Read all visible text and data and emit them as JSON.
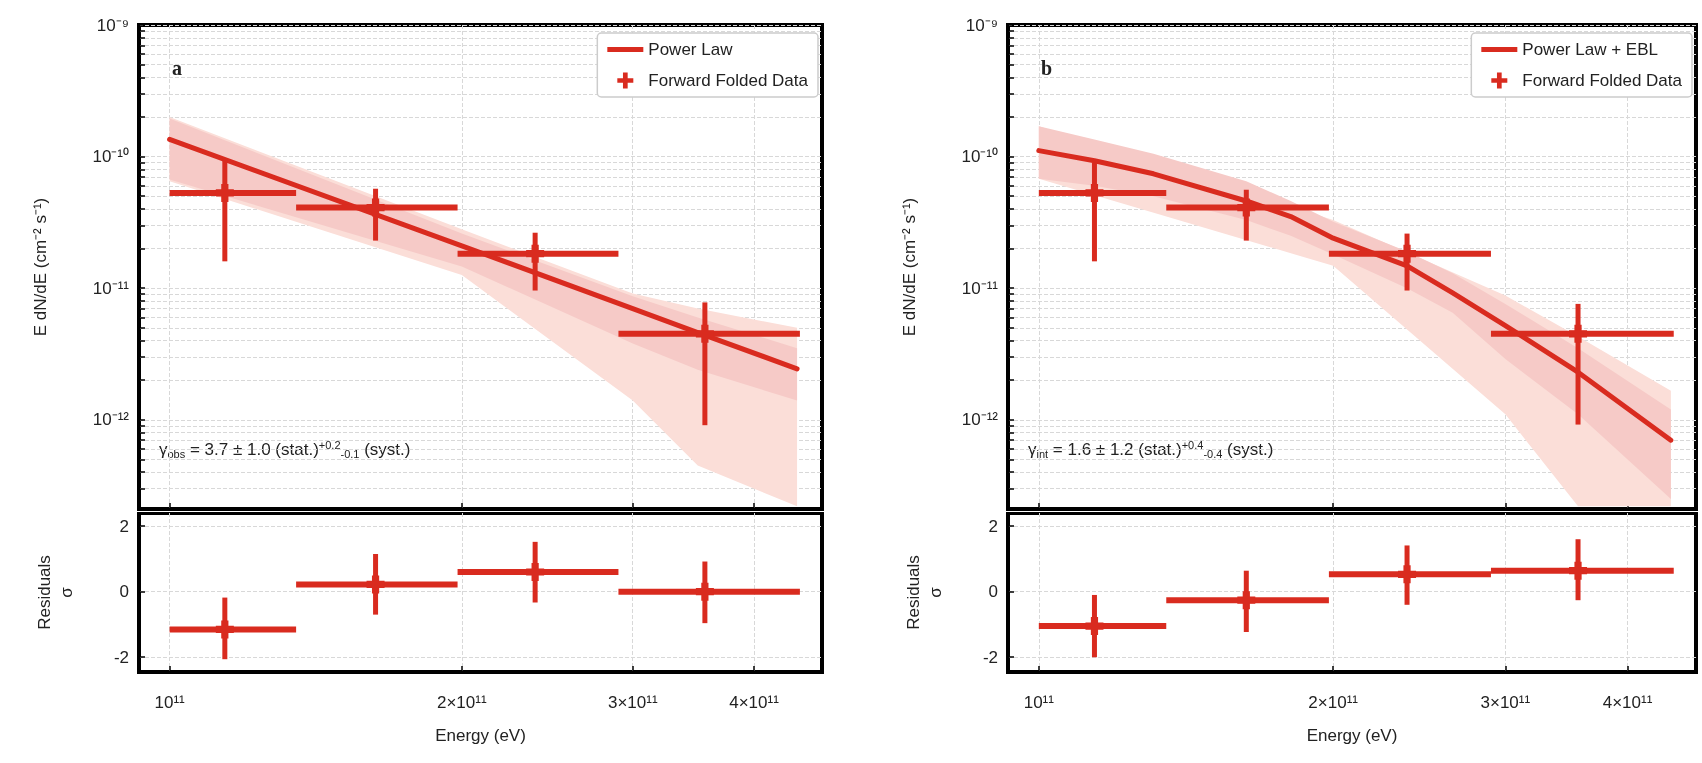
{
  "chart_data": [
    {
      "type": "scatter",
      "title": "a",
      "ylabel": "E dN/dE (cm⁻² s⁻¹)",
      "annotations": [
        "γ$_{obs}$ = 3.7 ± 1.0 (stat.)$^{+0.2}$$_{-0.1}$ (syst.)"
      ],
      "log": "xy",
      "grid": true,
      "legend": "top right",
      "marker": "none",
      "tick_labels": "y",
      "xlim": [
        93000000000.0,
        470000000000.0
      ],
      "xticks": [
        {
          "value": 100000000000.0,
          "label": null
        },
        {
          "value": 200000000000.0,
          "label": null
        },
        {
          "value": 300000000000.0,
          "label": null
        },
        {
          "value": 400000000000.0,
          "label": null
        }
      ],
      "ylim": [
        2.1e-13,
        1e-09
      ],
      "yticks": [
        {
          "value": 3e-13,
          "label": null
        },
        {
          "value": 4e-13,
          "label": null
        },
        {
          "value": 5e-13,
          "label": null
        },
        {
          "value": 6e-13,
          "label": null
        },
        {
          "value": 7e-13,
          "label": null
        },
        {
          "value": 8e-13,
          "label": null
        },
        {
          "value": 9e-13,
          "label": null
        },
        {
          "value": 1e-12,
          "label": "10⁻¹²"
        },
        {
          "value": 2e-12,
          "label": null
        },
        {
          "value": 3e-12,
          "label": null
        },
        {
          "value": 4e-12,
          "label": null
        },
        {
          "value": 5e-12,
          "label": null
        },
        {
          "value": 6e-12,
          "label": null
        },
        {
          "value": 7e-12,
          "label": null
        },
        {
          "value": 8e-12,
          "label": null
        },
        {
          "value": 9e-12,
          "label": null
        },
        {
          "value": 1e-11,
          "label": "10⁻¹¹"
        },
        {
          "value": 2e-11,
          "label": null
        },
        {
          "value": 3e-11,
          "label": null
        },
        {
          "value": 4e-11,
          "label": null
        },
        {
          "value": 5e-11,
          "label": null
        },
        {
          "value": 6e-11,
          "label": null
        },
        {
          "value": 7e-11,
          "label": null
        },
        {
          "value": 8e-11,
          "label": null
        },
        {
          "value": 9e-11,
          "label": null
        },
        {
          "value": 1e-10,
          "label": "10⁻¹⁰"
        },
        {
          "value": 2e-10,
          "label": null
        },
        {
          "value": 3e-10,
          "label": null
        },
        {
          "value": 4e-10,
          "label": null
        },
        {
          "value": 5e-10,
          "label": null
        },
        {
          "value": 6e-10,
          "label": null
        },
        {
          "value": 7e-10,
          "label": null
        },
        {
          "value": 8e-10,
          "label": null
        },
        {
          "value": 9e-10,
          "label": null
        },
        {
          "value": 1e-09,
          "label": "10⁻⁹"
        }
      ],
      "series": [
        {
          "type": "line",
          "color": "#f07a64",
          "x": [
            100000000000.0,
            200000000000.0,
            300000000000.0,
            350000000000.0,
            443000000000.0
          ],
          "values": [
            null,
            null,
            null,
            null,
            null
          ],
          "lower": [
            6.5e-11,
            1.26e-11,
            1.4e-12,
            4.5e-13,
            2.2e-13
          ],
          "upper": [
            2e-10,
            2.8e-11,
            9.1e-12,
            7e-12,
            5e-12
          ]
        },
        {
          "type": "line",
          "name": "Power Law",
          "color": "#d92b1f",
          "x": [
            100000000000.0,
            200000000000.0,
            300000000000.0,
            350000000000.0,
            443000000000.0
          ],
          "values": [
            1.35e-10,
            2.1e-11,
            7e-12,
            4.6e-12,
            2.44e-12
          ],
          "lower": [
            6.7e-11,
            1.46e-11,
            3.8e-12,
            2.4e-12,
            1.4e-12
          ],
          "upper": [
            1.95e-10,
            2.6e-11,
            8.7e-12,
            6e-12,
            3.5e-12
          ]
        },
        {
          "name": "Forward Folded Data",
          "color": "#d92b1f",
          "marker": "cross",
          "x": [
            114000000000.0,
            163000000000.0,
            238000000000.0,
            356000000000.0
          ],
          "values": [
            5.3e-11,
            4.1e-11,
            1.83e-11,
            4.5e-12
          ],
          "xerrors": [
            [
              100000000000.0,
              135000000000.0
            ],
            [
              135000000000.0,
              198000000000.0
            ],
            [
              198000000000.0,
              290000000000.0
            ],
            [
              290000000000.0,
              446000000000.0
            ]
          ],
          "errors": [
            [
              1.6e-11,
              9.7e-11
            ],
            [
              2.3e-11,
              5.7e-11
            ],
            [
              9.6e-12,
              2.64e-11
            ],
            [
              9.1e-13,
              7.8e-12
            ]
          ]
        }
      ]
    },
    {
      "type": "scatter",
      "title": "b",
      "ylabel": "E dN/dE (cm⁻² s⁻¹)",
      "annotations": [
        "γ$_{int}$ = 1.6 ± 1.2 (stat.)$^{+0.4}$$_{-0.4}$ (syst.)"
      ],
      "log": "xy",
      "grid": true,
      "legend": "top right",
      "marker": "none",
      "tick_labels": "y",
      "xlim": [
        93000000000.0,
        470000000000.0
      ],
      "xticks": [
        {
          "value": 100000000000.0,
          "label": null
        },
        {
          "value": 200000000000.0,
          "label": null
        },
        {
          "value": 300000000000.0,
          "label": null
        },
        {
          "value": 400000000000.0,
          "label": null
        }
      ],
      "ylim": [
        2.1e-13,
        1e-09
      ],
      "yticks": [
        {
          "value": 3e-13,
          "label": null
        },
        {
          "value": 4e-13,
          "label": null
        },
        {
          "value": 5e-13,
          "label": null
        },
        {
          "value": 6e-13,
          "label": null
        },
        {
          "value": 7e-13,
          "label": null
        },
        {
          "value": 8e-13,
          "label": null
        },
        {
          "value": 9e-13,
          "label": null
        },
        {
          "value": 1e-12,
          "label": "10⁻¹²"
        },
        {
          "value": 2e-12,
          "label": null
        },
        {
          "value": 3e-12,
          "label": null
        },
        {
          "value": 4e-12,
          "label": null
        },
        {
          "value": 5e-12,
          "label": null
        },
        {
          "value": 6e-12,
          "label": null
        },
        {
          "value": 7e-12,
          "label": null
        },
        {
          "value": 8e-12,
          "label": null
        },
        {
          "value": 9e-12,
          "label": null
        },
        {
          "value": 1e-11,
          "label": "10⁻¹¹"
        },
        {
          "value": 2e-11,
          "label": null
        },
        {
          "value": 3e-11,
          "label": null
        },
        {
          "value": 4e-11,
          "label": null
        },
        {
          "value": 5e-11,
          "label": null
        },
        {
          "value": 6e-11,
          "label": null
        },
        {
          "value": 7e-11,
          "label": null
        },
        {
          "value": 8e-11,
          "label": null
        },
        {
          "value": 9e-11,
          "label": null
        },
        {
          "value": 1e-10,
          "label": "10⁻¹⁰"
        },
        {
          "value": 2e-10,
          "label": null
        },
        {
          "value": 3e-10,
          "label": null
        },
        {
          "value": 4e-10,
          "label": null
        },
        {
          "value": 5e-10,
          "label": null
        },
        {
          "value": 6e-10,
          "label": null
        },
        {
          "value": 7e-10,
          "label": null
        },
        {
          "value": 8e-10,
          "label": null
        },
        {
          "value": 9e-10,
          "label": null
        },
        {
          "value": 1e-09,
          "label": "10⁻⁹"
        }
      ],
      "series": [
        {
          "type": "line",
          "color": "#f07a64",
          "x": [
            100000000000.0,
            200000000000.0,
            300000000000.0,
            356000000000.0,
            443000000000.0
          ],
          "values": [
            null,
            null,
            null,
            null,
            null
          ],
          "lower": [
            6.8e-11,
            1.48e-11,
            1.1e-12,
            2.2e-13,
            2.2e-13
          ],
          "upper": [
            1.7e-10,
            3.3e-11,
            8.8e-12,
            4.3e-12,
            1.66e-12
          ]
        },
        {
          "type": "line",
          "name": "Power Law + EBL",
          "color": "#d92b1f",
          "x": [
            100000000000.0,
            114000000000.0,
            131000000000.0,
            163000000000.0,
            181000000000.0,
            200000000000.0,
            238000000000.0,
            265000000000.0,
            300000000000.0,
            356000000000.0,
            443000000000.0
          ],
          "values": [
            1.11e-10,
            9.3e-11,
            7.4e-11,
            4.6e-11,
            3.5e-11,
            2.4e-11,
            1.48e-11,
            9.2e-12,
            5.2e-12,
            2.3e-12,
            7e-13
          ],
          "lower": [
            6.8e-11,
            6e-11,
            5e-11,
            3.3e-11,
            2.5e-11,
            1.8e-11,
            1e-11,
            6.5e-12,
            2.9e-12,
            1.1e-12,
            2.5e-13
          ],
          "upper": [
            1.7e-10,
            1.35e-10,
            1.05e-10,
            6.5e-11,
            4.6e-11,
            3.2e-11,
            1.9e-11,
            1.3e-11,
            7.6e-12,
            3.5e-12,
            1.2e-12
          ]
        },
        {
          "name": "Forward Folded Data",
          "color": "#d92b1f",
          "marker": "cross",
          "x": [
            114000000000.0,
            163000000000.0,
            238000000000.0,
            356000000000.0
          ],
          "values": [
            5.3e-11,
            4.1e-11,
            1.83e-11,
            4.5e-12
          ],
          "xerrors": [
            [
              100000000000.0,
              135000000000.0
            ],
            [
              135000000000.0,
              198000000000.0
            ],
            [
              198000000000.0,
              290000000000.0
            ],
            [
              290000000000.0,
              446000000000.0
            ]
          ],
          "errors": [
            [
              1.6e-11,
              9e-11
            ],
            [
              2.3e-11,
              5.6e-11
            ],
            [
              9.6e-12,
              2.6e-11
            ],
            [
              9.2e-13,
              7.6e-12
            ]
          ]
        }
      ]
    },
    {
      "type": "scatter",
      "xlabel": "Energy (eV)",
      "ylabel": "Residuals\nσ",
      "log": "x",
      "grid": true,
      "marker": "cross",
      "xlim": [
        93000000000.0,
        470000000000.0
      ],
      "xticks": [
        {
          "value": 100000000000.0,
          "label": "10¹¹"
        },
        {
          "value": 200000000000.0,
          "label": "2×10¹¹"
        },
        {
          "value": 300000000000.0,
          "label": "3×10¹¹"
        },
        {
          "value": 400000000000.0,
          "label": "4×10¹¹"
        }
      ],
      "ylim": [
        -2.45,
        2.4
      ],
      "yticks": [
        -2,
        0,
        2
      ],
      "series": [
        {
          "color": "#d92b1f",
          "x": [
            114000000000.0,
            163000000000.0,
            238000000000.0,
            356000000000.0
          ],
          "values": [
            -1.15,
            0.22,
            0.6,
            0.0
          ],
          "xerrors": [
            [
              100000000000.0,
              135000000000.0
            ],
            [
              135000000000.0,
              198000000000.0
            ],
            [
              198000000000.0,
              290000000000.0
            ],
            [
              290000000000.0,
              446000000000.0
            ]
          ],
          "errors": [
            [
              -2.06,
              -0.18
            ],
            [
              -0.7,
              1.15
            ],
            [
              -0.33,
              1.52
            ],
            [
              -0.96,
              0.92
            ]
          ]
        }
      ]
    },
    {
      "type": "scatter",
      "xlabel": "Energy (eV)",
      "ylabel": "Residuals\nσ",
      "log": "x",
      "grid": true,
      "marker": "cross",
      "xlim": [
        93000000000.0,
        470000000000.0
      ],
      "xticks": [
        {
          "value": 100000000000.0,
          "label": "10¹¹"
        },
        {
          "value": 200000000000.0,
          "label": "2×10¹¹"
        },
        {
          "value": 300000000000.0,
          "label": "3×10¹¹"
        },
        {
          "value": 400000000000.0,
          "label": "4×10¹¹"
        }
      ],
      "ylim": [
        -2.45,
        2.4
      ],
      "yticks": [
        -2,
        0,
        2
      ],
      "series": [
        {
          "color": "#d92b1f",
          "x": [
            114000000000.0,
            163000000000.0,
            238000000000.0,
            356000000000.0
          ],
          "values": [
            -1.05,
            -0.26,
            0.53,
            0.64
          ],
          "xerrors": [
            [
              100000000000.0,
              135000000000.0
            ],
            [
              135000000000.0,
              198000000000.0
            ],
            [
              198000000000.0,
              290000000000.0
            ],
            [
              290000000000.0,
              446000000000.0
            ]
          ],
          "errors": [
            [
              -2.0,
              -0.1
            ],
            [
              -1.23,
              0.64
            ],
            [
              -0.4,
              1.41
            ],
            [
              -0.26,
              1.6
            ]
          ]
        }
      ]
    }
  ]
}
